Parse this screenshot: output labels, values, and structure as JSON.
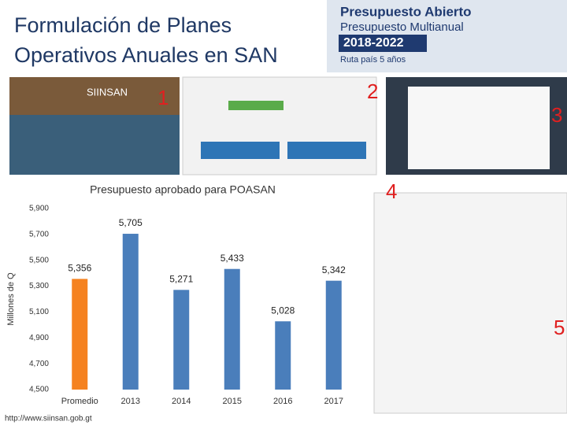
{
  "header": {
    "title_lines": [
      "Formulación de Planes",
      "Operativos Anuales en SAN"
    ]
  },
  "logo": {
    "line1": "Presupuesto Abierto",
    "line2": "Presupuesto Multianual",
    "line3": "2018-2022",
    "line4": "Ruta país 5 años"
  },
  "screenshot_label": "SIINSAN",
  "markers": [
    "1",
    "2",
    "3",
    "4",
    "5"
  ],
  "footer": {
    "url": "http://www.siinsan.gob.gt"
  },
  "chart_data": {
    "type": "bar",
    "title": "Presupuesto aprobado para POASAN",
    "y_label": "Millones de Q",
    "categories": [
      "Promedio",
      "2013",
      "2014",
      "2015",
      "2016",
      "2017"
    ],
    "values": [
      5356,
      5705,
      5271,
      5433,
      5028,
      5342
    ],
    "value_labels": [
      "5,356",
      "5,705",
      "5,271",
      "5,433",
      "5,028",
      "5,342"
    ],
    "colors": [
      "#f58220",
      "#4a7ebb",
      "#4a7ebb",
      "#4a7ebb",
      "#4a7ebb",
      "#4a7ebb"
    ],
    "ylim": [
      4500,
      5900
    ],
    "yticks": [
      {
        "value": 4500,
        "label": "4,500"
      },
      {
        "value": 4700,
        "label": "4,700"
      },
      {
        "value": 4900,
        "label": "4,900"
      },
      {
        "value": 5100,
        "label": "5,100"
      },
      {
        "value": 5300,
        "label": "5,300"
      },
      {
        "value": 5500,
        "label": "5,500"
      },
      {
        "value": 5700,
        "label": "5,700"
      },
      {
        "value": 5900,
        "label": "5,900"
      }
    ],
    "grid": false
  }
}
